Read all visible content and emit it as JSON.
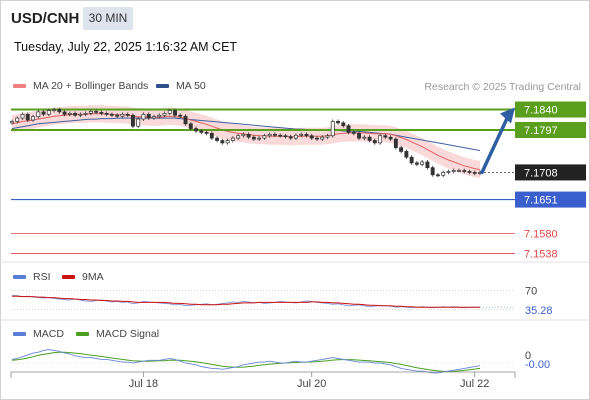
{
  "header": {
    "symbol": "USD/CNH",
    "timeframe": "30 MIN",
    "datetime": "Tuesday, July 22, 2025 1:16:32 AM CET"
  },
  "legend": {
    "ma20_label": "MA 20 + Bollinger Bands",
    "ma50_label": "MA 50",
    "credit": "Research © 2025 Trading Central",
    "rsi_label": "RSI",
    "rsi_ma_label": "9MA",
    "macd_label": "MACD",
    "macd_signal_label": "MACD Signal"
  },
  "colors": {
    "ma20": "#e06060",
    "bollinger_fill": "#f8d0d0",
    "ma50": "#4060a0",
    "resistance": "#5a9e1e",
    "support": "#3a5fcd",
    "target": "#e04848",
    "arrow": "#2e5fa3",
    "candle": "#333333",
    "current": "#222222"
  },
  "chart_data": [
    {
      "type": "candlestick",
      "x_ticks": [
        "Jul 18",
        "Jul 20",
        "Jul 22"
      ],
      "ylim": [
        7.152,
        7.186
      ],
      "levels": [
        {
          "name": "resistance",
          "value": 7.184,
          "label": "7.1840"
        },
        {
          "name": "resistance",
          "value": 7.1797,
          "label": "7.1797"
        },
        {
          "name": "current",
          "value": 7.1708,
          "label": "7.1708"
        },
        {
          "name": "support",
          "value": 7.1651,
          "label": "7.1651"
        },
        {
          "name": "target",
          "value": 7.158,
          "label": "7.1580"
        },
        {
          "name": "target",
          "value": 7.1538,
          "label": "7.1538"
        }
      ],
      "close": [
        7.1815,
        7.1822,
        7.183,
        7.1818,
        7.1825,
        7.1835,
        7.183,
        7.1838,
        7.184,
        7.1835,
        7.183,
        7.1832,
        7.1828,
        7.183,
        7.1832,
        7.1836,
        7.1834,
        7.1832,
        7.183,
        7.1828,
        7.1826,
        7.183,
        7.1828,
        7.1805,
        7.182,
        7.183,
        7.1822,
        7.1825,
        7.1828,
        7.1832,
        7.1838,
        7.1828,
        7.1826,
        7.181,
        7.18,
        7.1795,
        7.1792,
        7.179,
        7.178,
        7.1775,
        7.177,
        7.1775,
        7.178,
        7.1785,
        7.1788,
        7.1782,
        7.1778,
        7.178,
        7.1785,
        7.1788,
        7.1786,
        7.1785,
        7.1783,
        7.178,
        7.1786,
        7.1788,
        7.1785,
        7.178,
        7.1778,
        7.1782,
        7.1785,
        7.1815,
        7.1812,
        7.1806,
        7.1792,
        7.179,
        7.178,
        7.1782,
        7.1775,
        7.177,
        7.1785,
        7.1782,
        7.1778,
        7.176,
        7.1752,
        7.174,
        7.1728,
        7.1725,
        7.173,
        7.1718,
        7.1703,
        7.1702,
        7.1708,
        7.171,
        7.1712,
        7.1712,
        7.171,
        7.1708,
        7.1706,
        7.1708
      ],
      "ma20": [
        7.181,
        7.1812,
        7.1815,
        7.1816,
        7.1818,
        7.182,
        7.1822,
        7.1824,
        7.1826,
        7.1827,
        7.1828,
        7.1829,
        7.183,
        7.183,
        7.183,
        7.1831,
        7.1831,
        7.1831,
        7.183,
        7.183,
        7.1829,
        7.1829,
        7.1828,
        7.1826,
        7.1825,
        7.1825,
        7.1824,
        7.1824,
        7.1824,
        7.1825,
        7.1826,
        7.1825,
        7.1824,
        7.1821,
        7.1818,
        7.1815,
        7.1812,
        7.1809,
        7.1805,
        7.1801,
        7.1797,
        7.1794,
        7.1792,
        7.179,
        7.1789,
        7.1787,
        7.1786,
        7.1785,
        7.1785,
        7.1784,
        7.1784,
        7.1784,
        7.1784,
        7.1783,
        7.1783,
        7.1784,
        7.1784,
        7.1784,
        7.1784,
        7.1784,
        7.1785,
        7.1787,
        7.1789,
        7.179,
        7.1791,
        7.1791,
        7.1791,
        7.1791,
        7.179,
        7.1789,
        7.1789,
        7.1789,
        7.1788,
        7.1785,
        7.1781,
        7.1777,
        7.1772,
        7.1767,
        7.1762,
        7.1756,
        7.175,
        7.1744,
        7.1739,
        7.1734,
        7.173,
        7.1726,
        7.1722,
        7.1719,
        7.1716,
        7.1714
      ],
      "ma50": [
        7.18,
        7.1802,
        7.1804,
        7.1806,
        7.1808,
        7.181,
        7.1811,
        7.1812,
        7.1813,
        7.1814,
        7.1815,
        7.1816,
        7.1817,
        7.1818,
        7.1819,
        7.182,
        7.182,
        7.1821,
        7.1821,
        7.1821,
        7.1822,
        7.1822,
        7.1822,
        7.1822,
        7.1822,
        7.1822,
        7.1822,
        7.1822,
        7.1822,
        7.1822,
        7.1822,
        7.1822,
        7.1821,
        7.182,
        7.1819,
        7.1818,
        7.1817,
        7.1816,
        7.1815,
        7.1814,
        7.1813,
        7.1812,
        7.1811,
        7.181,
        7.1809,
        7.1808,
        7.1807,
        7.1806,
        7.1805,
        7.1804,
        7.1803,
        7.1802,
        7.1801,
        7.18,
        7.1799,
        7.1799,
        7.1798,
        7.1798,
        7.1797,
        7.1797,
        7.1796,
        7.1796,
        7.1796,
        7.1795,
        7.1795,
        7.1794,
        7.1794,
        7.1793,
        7.1792,
        7.1791,
        7.179,
        7.1789,
        7.1788,
        7.1786,
        7.1784,
        7.1782,
        7.178,
        7.1778,
        7.1776,
        7.1774,
        7.1772,
        7.177,
        7.1768,
        7.1766,
        7.1764,
        7.1762,
        7.176,
        7.1758,
        7.1756,
        7.1754
      ],
      "bb_width": 0.0018,
      "projection": {
        "from": 7.1708,
        "to": 7.184
      }
    },
    {
      "type": "line",
      "name": "RSI",
      "ylim": [
        0,
        100
      ],
      "levels": [
        70,
        30
      ],
      "level_labels": [
        "70"
      ],
      "last_label": "35.28",
      "rsi": [
        60,
        59,
        57,
        58,
        56,
        55,
        54,
        55,
        53,
        52,
        51,
        50,
        52,
        50,
        48,
        47,
        49,
        50,
        48,
        46,
        47,
        45,
        46,
        42,
        44,
        47,
        46,
        45,
        44,
        43,
        42,
        40,
        41,
        38,
        39,
        40,
        41,
        42,
        40,
        41,
        43,
        44,
        46,
        45,
        47,
        46,
        44,
        45,
        43,
        44,
        45,
        47,
        46,
        45,
        44,
        46,
        48,
        47,
        45,
        44,
        43,
        41,
        42,
        40,
        38,
        39,
        40,
        38,
        36,
        37,
        39,
        38,
        37,
        35,
        36,
        35,
        34,
        35,
        36,
        35,
        34,
        35,
        36,
        35,
        36,
        35,
        34,
        35,
        35,
        35
      ],
      "ma9": [
        58,
        58,
        57,
        57,
        57,
        56,
        56,
        55,
        55,
        54,
        53,
        53,
        52,
        51,
        51,
        50,
        50,
        49,
        49,
        48,
        48,
        47,
        47,
        46,
        45,
        45,
        45,
        45,
        45,
        45,
        44,
        43,
        43,
        42,
        41,
        41,
        40,
        40,
        40,
        40,
        41,
        41,
        42,
        43,
        44,
        44,
        44,
        45,
        45,
        45,
        45,
        45,
        45,
        45,
        45,
        45,
        45,
        46,
        46,
        45,
        45,
        44,
        44,
        43,
        42,
        41,
        41,
        40,
        39,
        39,
        38,
        38,
        38,
        37,
        37,
        36,
        36,
        35,
        35,
        35,
        35,
        35,
        35,
        35,
        35,
        35,
        35,
        35,
        35,
        35
      ]
    },
    {
      "type": "line",
      "name": "MACD",
      "zero_label": "0",
      "last_label": "-0.00",
      "macd": [
        0.2,
        0.25,
        0.35,
        0.45,
        0.55,
        0.6,
        0.7,
        0.75,
        0.7,
        0.65,
        0.55,
        0.5,
        0.4,
        0.35,
        0.3,
        0.3,
        0.25,
        0.2,
        0.2,
        0.15,
        0.1,
        0.05,
        0.05,
        0.0,
        0.05,
        0.1,
        0.15,
        0.15,
        0.15,
        0.2,
        0.25,
        0.2,
        0.1,
        0.0,
        -0.05,
        -0.1,
        -0.2,
        -0.25,
        -0.3,
        -0.3,
        -0.35,
        -0.3,
        -0.25,
        -0.2,
        -0.1,
        -0.05,
        0.0,
        0.05,
        0.05,
        0.1,
        0.05,
        0.0,
        0.0,
        0.05,
        0.1,
        0.05,
        0.05,
        0.1,
        0.15,
        0.2,
        0.25,
        0.3,
        0.25,
        0.2,
        0.15,
        0.1,
        0.05,
        0.05,
        0.05,
        0.0,
        0.0,
        -0.05,
        -0.1,
        -0.2,
        -0.3,
        -0.35,
        -0.4,
        -0.45,
        -0.45,
        -0.5,
        -0.55,
        -0.55,
        -0.5,
        -0.45,
        -0.4,
        -0.35,
        -0.3,
        -0.25,
        -0.2,
        -0.15
      ],
      "signal": [
        0.15,
        0.18,
        0.22,
        0.28,
        0.35,
        0.42,
        0.48,
        0.53,
        0.58,
        0.6,
        0.6,
        0.58,
        0.55,
        0.52,
        0.48,
        0.44,
        0.4,
        0.36,
        0.32,
        0.28,
        0.24,
        0.2,
        0.16,
        0.13,
        0.11,
        0.1,
        0.1,
        0.11,
        0.12,
        0.13,
        0.15,
        0.16,
        0.15,
        0.13,
        0.1,
        0.06,
        0.02,
        -0.03,
        -0.08,
        -0.13,
        -0.18,
        -0.21,
        -0.23,
        -0.24,
        -0.23,
        -0.2,
        -0.17,
        -0.13,
        -0.1,
        -0.06,
        -0.04,
        -0.02,
        0.0,
        0.01,
        0.03,
        0.04,
        0.05,
        0.06,
        0.08,
        0.1,
        0.13,
        0.16,
        0.18,
        0.19,
        0.19,
        0.18,
        0.16,
        0.14,
        0.12,
        0.1,
        0.08,
        0.05,
        0.02,
        -0.03,
        -0.08,
        -0.14,
        -0.2,
        -0.26,
        -0.31,
        -0.36,
        -0.4,
        -0.44,
        -0.46,
        -0.47,
        -0.46,
        -0.44,
        -0.41,
        -0.38,
        -0.34,
        -0.3
      ]
    }
  ]
}
